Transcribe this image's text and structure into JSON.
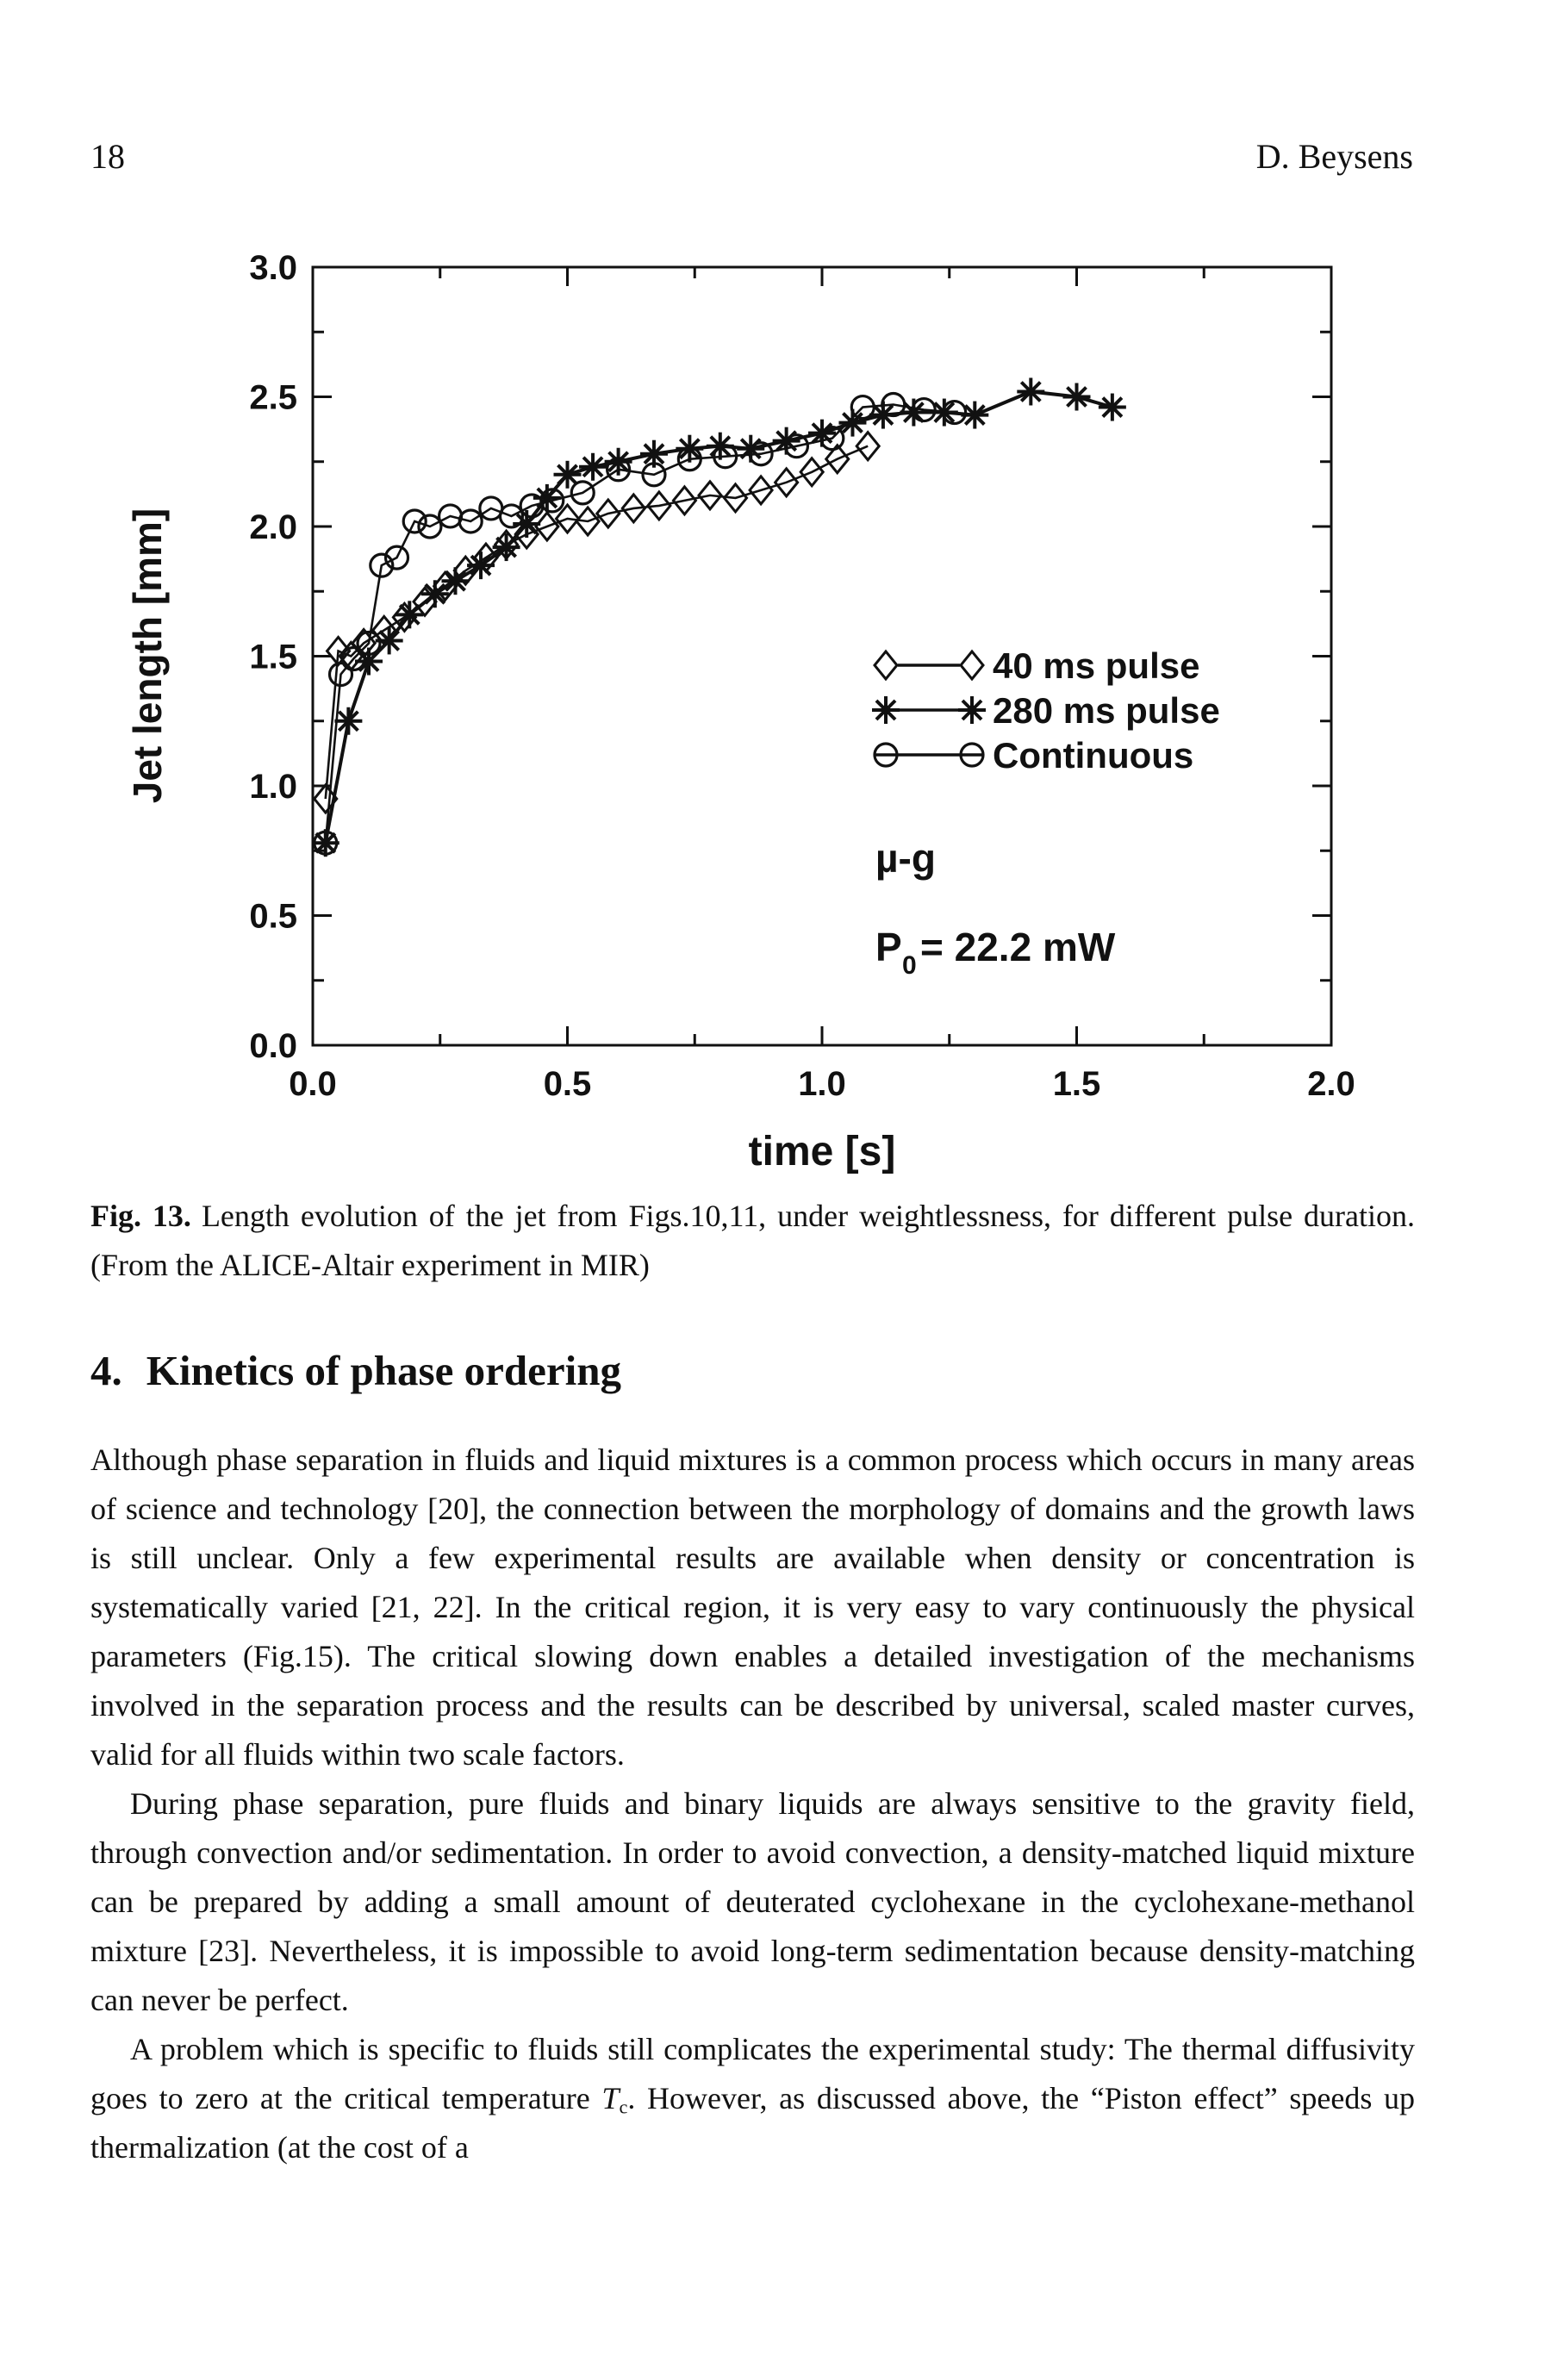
{
  "page": {
    "number": "18",
    "running_head": "D. Beysens"
  },
  "figure": {
    "caption_label": "Fig. 13.",
    "caption_text": "Length evolution of the jet from Figs.10,11, under weightlessness, for different pulse duration.(From the ALICE-Altair experiment in MIR)"
  },
  "section": {
    "number": "4.",
    "title": "Kinetics of phase ordering"
  },
  "paragraphs": {
    "p1": "Although phase separation in fluids and liquid mixtures is a common process which occurs in many areas of science and technology [20], the connection between the morphology of domains and the growth laws is still unclear. Only a few experimental results are available when density or concentration is systematically varied [21, 22]. In the critical region, it is very easy to vary continuously the physical parameters (Fig.15). The critical slowing down enables a detailed investigation of the mechanisms involved in the separation process and the results can be described by universal, scaled master curves, valid for all fluids within two scale factors.",
    "p2": "During phase separation, pure fluids and binary liquids are always sensitive to the gravity field, through convection and/or sedimentation. In order to avoid convection, a density-matched liquid mixture can be prepared by adding a small amount of deuterated cyclohexane in the cyclohexane-methanol mixture [23]. Nevertheless, it is impossible to avoid long-term sedimentation because density-matching can never be perfect.",
    "p3_part1": "A problem which is specific to fluids still complicates the experimental study: The thermal diffusivity goes to zero at the critical temperature ",
    "p3_tc_main": "T",
    "p3_tc_sub": "c",
    "p3_part2": ". However, as discussed above, the “Piston effect” speeds up thermalization (at the cost of a"
  },
  "chart_data": {
    "type": "line",
    "title": "",
    "xlabel": "time [s]",
    "ylabel": "Jet length [mm]",
    "xlim": [
      0,
      2
    ],
    "ylim": [
      0,
      3
    ],
    "grid": false,
    "x_ticks": {
      "major": [
        0,
        0.5,
        1.0,
        1.5,
        2.0
      ],
      "major_labels": [
        "0.0",
        "0.5",
        "1.0",
        "1.5",
        "2.0"
      ],
      "minor": [
        0.25,
        0.75,
        1.25,
        1.75
      ]
    },
    "y_ticks": {
      "major": [
        0,
        0.5,
        1.0,
        1.5,
        2.0,
        2.5,
        3.0
      ],
      "major_labels": [
        "0.0",
        "0.5",
        "1.0",
        "1.5",
        "2.0",
        "2.5",
        "3.0"
      ],
      "minor": [
        0.25,
        0.75,
        1.25,
        1.75,
        2.25,
        2.75
      ]
    },
    "legend": {
      "position": "inside-right",
      "entries": [
        {
          "label": "40 ms pulse",
          "marker": "diamond"
        },
        {
          "label": "280 ms pulse",
          "marker": "asterisk"
        },
        {
          "label": "Continuous",
          "marker": "circle"
        }
      ]
    },
    "annotations": {
      "gravity_label": "µ-g",
      "power_main": "P",
      "power_sub": "0",
      "power_rest": "= 22.2 mW"
    },
    "series": [
      {
        "name": "40 ms pulse",
        "marker": "diamond",
        "points": [
          [
            0.025,
            0.95
          ],
          [
            0.05,
            1.52
          ],
          [
            0.075,
            1.5
          ],
          [
            0.1,
            1.55
          ],
          [
            0.14,
            1.6
          ],
          [
            0.18,
            1.65
          ],
          [
            0.22,
            1.71
          ],
          [
            0.26,
            1.77
          ],
          [
            0.3,
            1.83
          ],
          [
            0.34,
            1.88
          ],
          [
            0.38,
            1.93
          ],
          [
            0.42,
            1.97
          ],
          [
            0.46,
            2.0
          ],
          [
            0.5,
            2.03
          ],
          [
            0.54,
            2.02
          ],
          [
            0.58,
            2.05
          ],
          [
            0.63,
            2.07
          ],
          [
            0.68,
            2.08
          ],
          [
            0.73,
            2.1
          ],
          [
            0.78,
            2.12
          ],
          [
            0.83,
            2.11
          ],
          [
            0.88,
            2.14
          ],
          [
            0.93,
            2.17
          ],
          [
            0.98,
            2.21
          ],
          [
            1.03,
            2.26
          ],
          [
            1.09,
            2.31
          ]
        ]
      },
      {
        "name": "280 ms pulse",
        "marker": "asterisk",
        "points": [
          [
            0.025,
            0.78
          ],
          [
            0.07,
            1.25
          ],
          [
            0.11,
            1.48
          ],
          [
            0.15,
            1.56
          ],
          [
            0.19,
            1.66
          ],
          [
            0.24,
            1.74
          ],
          [
            0.28,
            1.79
          ],
          [
            0.33,
            1.85
          ],
          [
            0.38,
            1.92
          ],
          [
            0.42,
            2.01
          ],
          [
            0.46,
            2.11
          ],
          [
            0.5,
            2.2
          ],
          [
            0.55,
            2.23
          ],
          [
            0.6,
            2.25
          ],
          [
            0.67,
            2.28
          ],
          [
            0.74,
            2.3
          ],
          [
            0.8,
            2.31
          ],
          [
            0.86,
            2.3
          ],
          [
            0.93,
            2.33
          ],
          [
            1.0,
            2.36
          ],
          [
            1.06,
            2.4
          ],
          [
            1.12,
            2.43
          ],
          [
            1.18,
            2.44
          ],
          [
            1.24,
            2.44
          ],
          [
            1.3,
            2.43
          ],
          [
            1.41,
            2.52
          ],
          [
            1.5,
            2.5
          ],
          [
            1.57,
            2.46
          ]
        ]
      },
      {
        "name": "Continuous",
        "marker": "circle",
        "points": [
          [
            0.025,
            0.78
          ],
          [
            0.055,
            1.43
          ],
          [
            0.08,
            1.49
          ],
          [
            0.11,
            1.55
          ],
          [
            0.135,
            1.85
          ],
          [
            0.165,
            1.88
          ],
          [
            0.2,
            2.02
          ],
          [
            0.23,
            2.0
          ],
          [
            0.27,
            2.04
          ],
          [
            0.31,
            2.02
          ],
          [
            0.35,
            2.07
          ],
          [
            0.39,
            2.04
          ],
          [
            0.43,
            2.08
          ],
          [
            0.47,
            2.1
          ],
          [
            0.53,
            2.13
          ],
          [
            0.6,
            2.22
          ],
          [
            0.67,
            2.2
          ],
          [
            0.74,
            2.26
          ],
          [
            0.81,
            2.27
          ],
          [
            0.88,
            2.28
          ],
          [
            0.95,
            2.31
          ],
          [
            1.02,
            2.34
          ],
          [
            1.08,
            2.46
          ],
          [
            1.14,
            2.47
          ],
          [
            1.2,
            2.45
          ],
          [
            1.26,
            2.44
          ]
        ]
      }
    ]
  }
}
